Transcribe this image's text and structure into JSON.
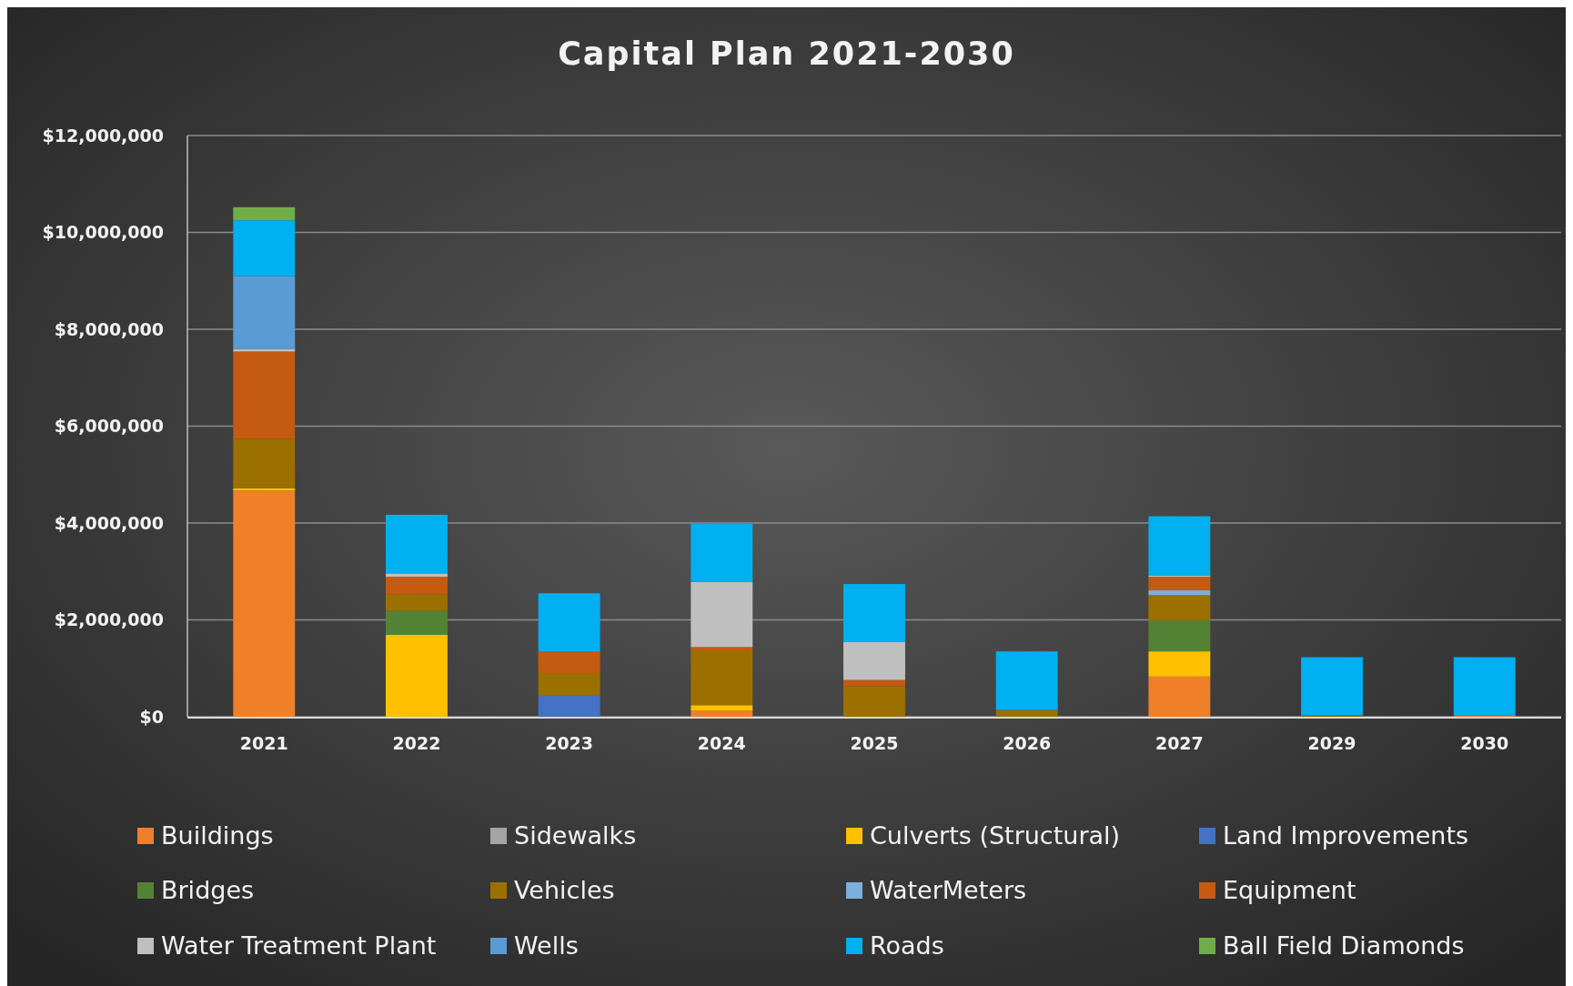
{
  "chart_data": {
    "type": "bar",
    "title": "Capital Plan 2021-2030",
    "stacked": true,
    "grid": "y",
    "legend": "bottom",
    "categories": [
      "2021",
      "2022",
      "2023",
      "2024",
      "2025",
      "2026",
      "2027",
      "2029",
      "2030"
    ],
    "ylim": [
      0,
      12000000
    ],
    "yticks": [
      {
        "value": 0,
        "label": "$0"
      },
      {
        "value": 2000000,
        "label": "$2,000,000"
      },
      {
        "value": 4000000,
        "label": "$4,000,000"
      },
      {
        "value": 6000000,
        "label": "$6,000,000"
      },
      {
        "value": 8000000,
        "label": "$8,000,000"
      },
      {
        "value": 10000000,
        "label": "$10,000,000"
      },
      {
        "value": 12000000,
        "label": "$12,000,000"
      }
    ],
    "series": [
      {
        "name": "Buildings",
        "color": "#f07f2a",
        "values": [
          4670000,
          null,
          null,
          130000,
          null,
          null,
          830000,
          null,
          30000
        ]
      },
      {
        "name": "Sidewalks",
        "color": "#a5a5a5",
        "values": [
          null,
          null,
          null,
          null,
          null,
          null,
          null,
          null,
          null
        ]
      },
      {
        "name": "Culverts (Structural)",
        "color": "#ffc000",
        "values": [
          50000,
          1690000,
          null,
          110000,
          null,
          null,
          520000,
          null,
          null
        ]
      },
      {
        "name": "Land Improvements",
        "color": "#4472c4",
        "values": [
          null,
          null,
          450000,
          null,
          null,
          null,
          null,
          null,
          null
        ]
      },
      {
        "name": "Bridges",
        "color": "#548235",
        "values": [
          null,
          500000,
          null,
          null,
          null,
          null,
          640000,
          null,
          null
        ]
      },
      {
        "name": "Vehicles",
        "color": "#9c7000",
        "values": [
          1020000,
          340000,
          450000,
          1130000,
          630000,
          140000,
          520000,
          30000,
          null
        ]
      },
      {
        "name": "WaterMeters",
        "color": "#7cafdd",
        "values": [
          null,
          null,
          null,
          null,
          null,
          null,
          100000,
          null,
          null
        ]
      },
      {
        "name": "Equipment",
        "color": "#c55a11",
        "values": [
          1800000,
          360000,
          450000,
          70000,
          130000,
          null,
          280000,
          null,
          null
        ]
      },
      {
        "name": "Water Treatment Plant",
        "color": "#bfbfbf",
        "values": [
          50000,
          70000,
          null,
          1340000,
          780000,
          null,
          30000,
          null,
          null
        ]
      },
      {
        "name": "Wells",
        "color": "#5b9bd5",
        "values": [
          1510000,
          null,
          null,
          null,
          null,
          null,
          null,
          null,
          null
        ]
      },
      {
        "name": "Roads",
        "color": "#00b0f0",
        "values": [
          1150000,
          1210000,
          1200000,
          1200000,
          1200000,
          1210000,
          1220000,
          1200000,
          1200000
        ]
      },
      {
        "name": "Ball Field Diamonds",
        "color": "#70ad47",
        "values": [
          270000,
          null,
          null,
          null,
          null,
          null,
          null,
          null,
          null
        ]
      }
    ]
  }
}
